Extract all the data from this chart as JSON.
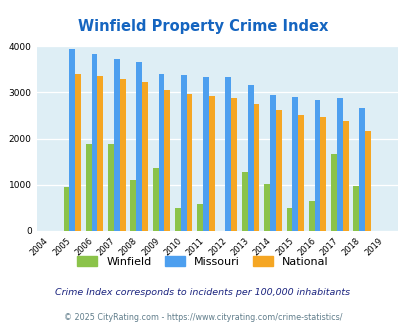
{
  "title": "Winfield Property Crime Index",
  "years": [
    2004,
    2005,
    2006,
    2007,
    2008,
    2009,
    2010,
    2011,
    2012,
    2013,
    2014,
    2015,
    2016,
    2017,
    2018,
    2019
  ],
  "winfield": [
    0,
    950,
    1890,
    1890,
    1100,
    1370,
    500,
    580,
    0,
    1280,
    1010,
    500,
    640,
    1660,
    980,
    0
  ],
  "missouri": [
    0,
    3940,
    3840,
    3730,
    3650,
    3400,
    3370,
    3340,
    3330,
    3150,
    2940,
    2900,
    2830,
    2870,
    2660,
    0
  ],
  "national": [
    0,
    3400,
    3360,
    3280,
    3220,
    3060,
    2960,
    2930,
    2880,
    2750,
    2620,
    2510,
    2460,
    2380,
    2175,
    0
  ],
  "winfield_color": "#8bc34a",
  "missouri_color": "#4d9fef",
  "national_color": "#f5a623",
  "bg_color": "#deeef5",
  "title_color": "#1565c0",
  "subtitle": "Crime Index corresponds to incidents per 100,000 inhabitants",
  "footer": "© 2025 CityRating.com - https://www.cityrating.com/crime-statistics/",
  "subtitle_color": "#1a237e",
  "footer_color": "#607d8b",
  "ylim": [
    0,
    4000
  ],
  "yticks": [
    0,
    1000,
    2000,
    3000,
    4000
  ]
}
